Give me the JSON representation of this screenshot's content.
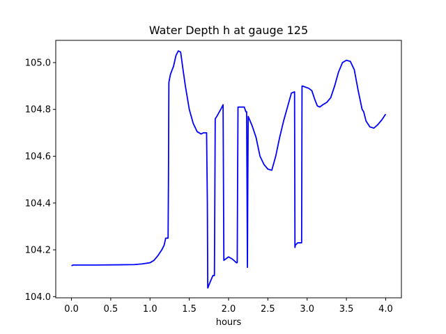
{
  "chart_data": {
    "type": "line",
    "title": "Water Depth h at gauge 125",
    "xlabel": "hours",
    "ylabel": "",
    "xlim": [
      -0.2,
      4.2
    ],
    "ylim": [
      103.995,
      105.095
    ],
    "xticks": [
      0.0,
      0.5,
      1.0,
      1.5,
      2.0,
      2.5,
      3.0,
      3.5,
      4.0
    ],
    "xtick_labels": [
      "0.0",
      "0.5",
      "1.0",
      "1.5",
      "2.0",
      "2.5",
      "3.0",
      "3.5",
      "4.0"
    ],
    "yticks": [
      104.0,
      104.2,
      104.4,
      104.6,
      104.8,
      105.0
    ],
    "ytick_labels": [
      "104.0",
      "104.2",
      "104.4",
      "104.6",
      "104.8",
      "105.0"
    ],
    "grid": false,
    "line_color": "#0000ff",
    "series": [
      {
        "name": "",
        "x": [
          0.0,
          0.02,
          0.3,
          0.6,
          0.8,
          0.9,
          1.0,
          1.05,
          1.1,
          1.15,
          1.18,
          1.2,
          1.23,
          1.235,
          1.24,
          1.26,
          1.3,
          1.33,
          1.36,
          1.39,
          1.42,
          1.45,
          1.5,
          1.55,
          1.6,
          1.65,
          1.68,
          1.72,
          1.73,
          1.735,
          1.74,
          1.75,
          1.8,
          1.82,
          1.83,
          1.85,
          1.9,
          1.93,
          1.935,
          1.94,
          2.0,
          2.05,
          2.1,
          2.11,
          2.115,
          2.12,
          2.15,
          2.18,
          2.2,
          2.22,
          2.23,
          2.24,
          2.245,
          2.25,
          2.3,
          2.35,
          2.4,
          2.45,
          2.5,
          2.55,
          2.6,
          2.65,
          2.7,
          2.8,
          2.84,
          2.845,
          2.85,
          2.88,
          2.92,
          2.93,
          2.935,
          2.94,
          2.98,
          3.02,
          3.06,
          3.1,
          3.13,
          3.16,
          3.2,
          3.25,
          3.3,
          3.35,
          3.4,
          3.45,
          3.5,
          3.55,
          3.6,
          3.65,
          3.7,
          3.72,
          3.75,
          3.8,
          3.85,
          3.9,
          3.95,
          4.0
        ],
        "y": [
          104.132,
          104.135,
          104.135,
          104.136,
          104.137,
          104.14,
          104.145,
          104.155,
          104.175,
          104.2,
          104.22,
          104.25,
          104.25,
          104.5,
          104.915,
          104.95,
          104.985,
          105.03,
          105.05,
          105.045,
          104.97,
          104.9,
          104.8,
          104.74,
          104.705,
          104.695,
          104.7,
          104.7,
          104.4,
          104.037,
          104.04,
          104.05,
          104.09,
          104.09,
          104.76,
          104.77,
          104.8,
          104.82,
          104.5,
          104.155,
          104.17,
          104.16,
          104.145,
          104.145,
          104.5,
          104.81,
          104.81,
          104.81,
          104.81,
          104.79,
          104.79,
          104.125,
          104.5,
          104.77,
          104.73,
          104.68,
          104.6,
          104.565,
          104.545,
          104.54,
          104.6,
          104.68,
          104.75,
          104.87,
          104.875,
          104.21,
          104.22,
          104.23,
          104.23,
          104.23,
          104.9,
          104.9,
          104.895,
          104.89,
          104.88,
          104.84,
          104.815,
          104.81,
          104.82,
          104.83,
          104.85,
          104.9,
          104.96,
          105.0,
          105.01,
          105.005,
          104.97,
          104.88,
          104.8,
          104.79,
          104.75,
          104.725,
          104.72,
          104.735,
          104.755,
          104.78
        ]
      }
    ]
  }
}
